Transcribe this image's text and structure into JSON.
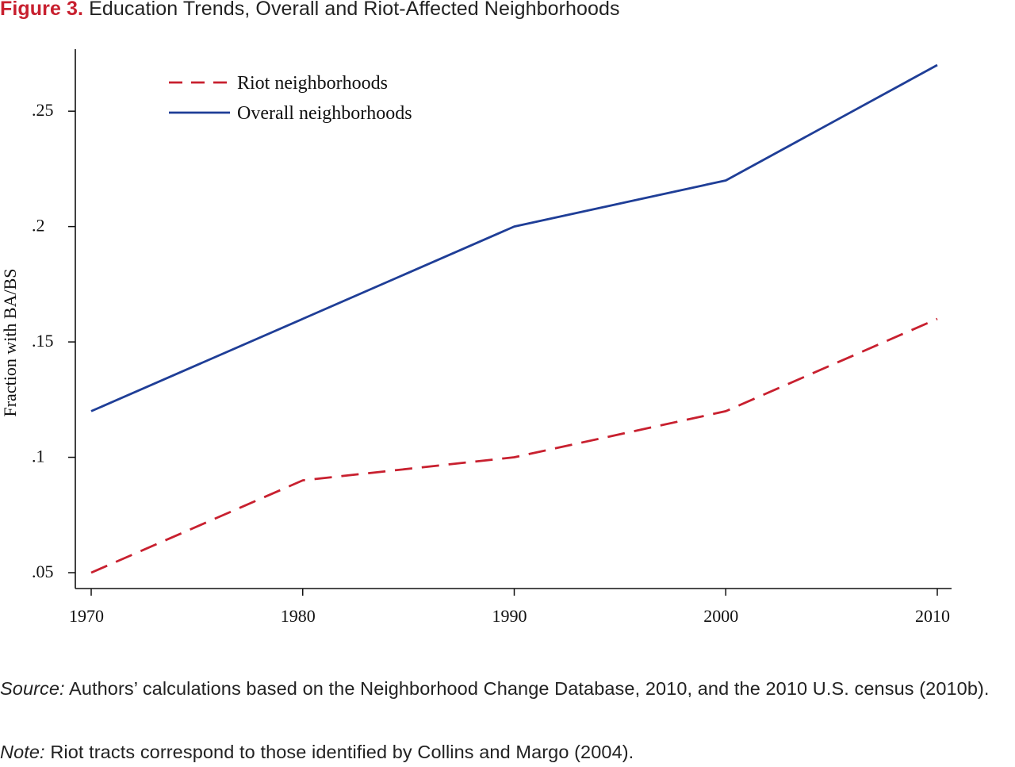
{
  "figure": {
    "label": "Figure 3.",
    "title": "Education Trends, Overall and Riot-Affected Neighborhoods"
  },
  "chart_data": {
    "type": "line",
    "x": [
      1970,
      1980,
      1990,
      2000,
      2010
    ],
    "series": [
      {
        "name": "Riot neighborhoods",
        "values": [
          0.05,
          0.09,
          0.1,
          0.12,
          0.16
        ],
        "color": "#c8202f",
        "dash": "dashed"
      },
      {
        "name": "Overall neighborhoods",
        "values": [
          0.12,
          0.16,
          0.2,
          0.22,
          0.27
        ],
        "color": "#1f3e97",
        "dash": "solid"
      }
    ],
    "xticks": [
      {
        "value": 1970,
        "label": "1970"
      },
      {
        "value": 1980,
        "label": "1980"
      },
      {
        "value": 1990,
        "label": "1990"
      },
      {
        "value": 2000,
        "label": "2000"
      },
      {
        "value": 2010,
        "label": "2010"
      }
    ],
    "yticks": [
      {
        "value": 0.05,
        "label": ".05"
      },
      {
        "value": 0.1,
        "label": ".1"
      },
      {
        "value": 0.15,
        "label": ".15"
      },
      {
        "value": 0.2,
        "label": ".2"
      },
      {
        "value": 0.25,
        "label": ".25"
      }
    ],
    "xlim": [
      1970,
      2010
    ],
    "ylim": [
      0.05,
      0.27
    ],
    "xlabel": "",
    "ylabel": "Fraction with BA/BS",
    "grid": false,
    "legend_position": "top-left"
  },
  "caption": {
    "source_label": "Source:",
    "source_text": "Authors’ calculations based on the Neighborhood Change Database, 2010, and the 2010 U.S. census (2010b).",
    "note_label": "Note:",
    "note_text": "Riot tracts correspond to those identified by Collins and Margo (2004)."
  }
}
